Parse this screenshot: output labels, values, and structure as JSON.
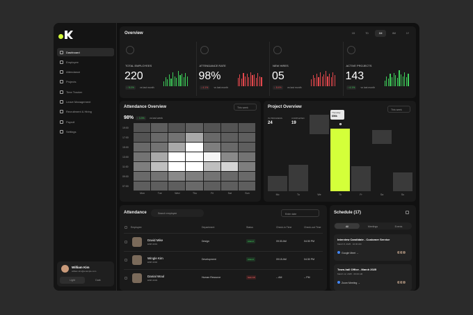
{
  "sidebar": {
    "nav": [
      "Dashboard",
      "Employee",
      "Attendance",
      "Projects",
      "Time Tracker",
      "Leave Management",
      "Recruitment & Hiring",
      "Payroll",
      "Settings"
    ],
    "active": 0,
    "user": {
      "name": "William Kim",
      "email": "william.kim@example.com"
    },
    "theme": [
      "Light",
      "Dark"
    ]
  },
  "overview": {
    "title": "Overview",
    "periods": [
      "1D",
      "7D",
      "1M",
      "6M",
      "1Y"
    ],
    "active_period": 2,
    "kpis": [
      {
        "label": "TOTAL EMPLOYEES",
        "value": "220",
        "change": "↑ 5.1%",
        "note": "vs last month",
        "color": "#3ecf5a",
        "spark": [
          30,
          55,
          40,
          70,
          45,
          85,
          60,
          50,
          90,
          65,
          75,
          55,
          80,
          60
        ]
      },
      {
        "label": "ATTENDANCE RATE",
        "value": "98%",
        "change": "↓ 4.1%",
        "note": "vs last month",
        "color": "#e5484d",
        "spark": [
          50,
          70,
          45,
          80,
          60,
          75,
          55,
          85,
          65,
          70,
          50,
          80,
          60,
          55
        ]
      },
      {
        "label": "NEW HIRES",
        "value": "05",
        "change": "↓ 8.4%",
        "note": "vs last month",
        "color": "#e5484d",
        "spark": [
          40,
          65,
          50,
          75,
          55,
          85,
          60,
          70,
          90,
          60,
          75,
          55,
          85,
          65
        ]
      },
      {
        "label": "ACTIVE PROJECTS",
        "value": "143",
        "change": "↑ 4.1%",
        "note": "vs last month",
        "color": "#3ecf5a",
        "spark": [
          35,
          60,
          45,
          75,
          55,
          80,
          65,
          50,
          95,
          70,
          60,
          85,
          55,
          75
        ]
      }
    ]
  },
  "attendance_overview": {
    "title": "Attendance Overview",
    "filter": "This week",
    "value": "98%",
    "change": "↑ 3.3%",
    "note": "vs last week",
    "hours": [
      "19:00",
      "17:00",
      "15:00",
      "13:00",
      "11:00",
      "09:00",
      "07:00"
    ],
    "days": [
      "Mon",
      "Tue",
      "Wed",
      "Thu",
      "Fri",
      "Sat",
      "Sun"
    ],
    "matrix": [
      [
        20,
        25,
        20,
        25,
        20,
        20,
        20
      ],
      [
        20,
        30,
        35,
        60,
        30,
        25,
        25
      ],
      [
        30,
        35,
        60,
        100,
        40,
        30,
        25
      ],
      [
        35,
        60,
        100,
        100,
        95,
        45,
        35
      ],
      [
        40,
        70,
        100,
        100,
        70,
        80,
        40
      ],
      [
        30,
        35,
        45,
        40,
        35,
        30,
        30
      ],
      [
        25,
        25,
        25,
        30,
        25,
        25,
        25
      ]
    ]
  },
  "project_overview": {
    "title": "Project Overview",
    "filter": "This week",
    "legend": [
      {
        "label": "IN PROGRESS",
        "value": 24
      },
      {
        "label": "COMPLETED",
        "value": 19
      }
    ],
    "days": [
      "Mo",
      "Tu",
      "We",
      "Th",
      "Fr",
      "Sa",
      "Su"
    ],
    "low": [
      0,
      0,
      75,
      0,
      0,
      62,
      0
    ],
    "high": [
      20,
      35,
      100,
      82,
      33,
      80,
      25
    ],
    "highlight": 3,
    "tooltip": {
      "day": "Thursday",
      "value": "$56k"
    }
  },
  "attendance": {
    "title": "Attendance",
    "search": "Search employee",
    "date": "Enter date",
    "columns": [
      "Employee",
      "Department",
      "Status",
      "Check-in Time",
      "Check-out Time"
    ],
    "rows": [
      {
        "name": "David Mike",
        "id": "EMP-2001",
        "department": "Design",
        "status": "Attend",
        "check_in": "09:30 AM",
        "check_out": "04:30 PM"
      },
      {
        "name": "Wingle Kim",
        "id": "EMP-2002",
        "department": "Development",
        "status": "Attend",
        "check_in": "09:15 AM",
        "check_out": "04:30 PM"
      },
      {
        "name": "Danial Woul",
        "id": "EMP-2003",
        "department": "Human Resource",
        "status": "Sick Off",
        "check_in": "-- AM",
        "check_out": "-- PM"
      }
    ]
  },
  "schedule": {
    "title": "Schedule (17)",
    "tabs": [
      "All",
      "Meetings",
      "Events"
    ],
    "active_tab": 0,
    "events": [
      {
        "title": "Interview Candidate - Customer Service",
        "time": "March 8, 2025 · 10:30 AM",
        "platform": "Google Meet →"
      },
      {
        "title": "Town-hall Office - March 2025",
        "time": "March 12, 2025 · 09:00 AM",
        "platform": "Zoom Meeting →"
      }
    ]
  }
}
